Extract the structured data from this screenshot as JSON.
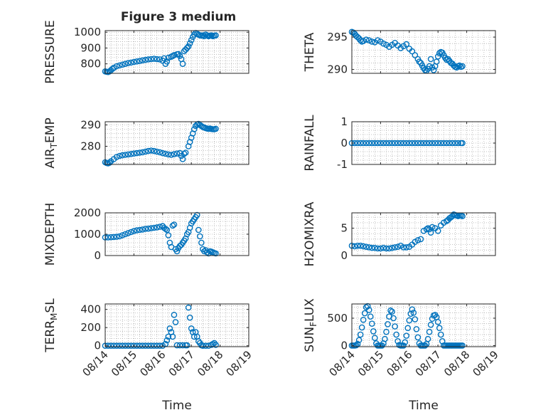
{
  "chart_data": [
    {
      "type": "scatter",
      "ylabel": "PRESSURE",
      "ylabel_sub": "",
      "ylabel_suffix": "",
      "title": "Figure 3 medium",
      "yticks": [
        800,
        900,
        1000
      ],
      "ylim": [
        740,
        1010
      ],
      "x": [
        0,
        0.05,
        0.1,
        0.15,
        0.2,
        0.25,
        0.3,
        0.4,
        0.5,
        0.6,
        0.7,
        0.8,
        0.9,
        1,
        1.1,
        1.2,
        1.3,
        1.4,
        1.5,
        1.6,
        1.7,
        1.8,
        1.9,
        2,
        2.05,
        2.1,
        2.15,
        2.2,
        2.3,
        2.35,
        2.4,
        2.5,
        2.55,
        2.6,
        2.65,
        2.7,
        2.75,
        2.8,
        2.85,
        2.9,
        2.95,
        3,
        3.05,
        3.1,
        3.15,
        3.2,
        3.25,
        3.3,
        3.35,
        3.4,
        3.45,
        3.5,
        3.55,
        3.6,
        3.65,
        3.7,
        3.75,
        3.8,
        3.85
      ],
      "y": [
        752,
        750,
        748,
        752,
        760,
        768,
        775,
        785,
        790,
        795,
        800,
        805,
        808,
        812,
        815,
        818,
        822,
        825,
        828,
        830,
        832,
        830,
        828,
        820,
        835,
        800,
        815,
        838,
        845,
        850,
        855,
        860,
        862,
        850,
        830,
        800,
        880,
        890,
        900,
        910,
        930,
        950,
        970,
        985,
        995,
        990,
        985,
        980,
        978,
        980,
        975,
        985,
        980,
        975,
        978,
        980,
        975,
        978,
        980
      ]
    },
    {
      "type": "scatter",
      "ylabel": "THETA",
      "ylabel_sub": "",
      "ylabel_suffix": "",
      "yticks": [
        290,
        295
      ],
      "ylim": [
        289.4,
        296
      ],
      "x": [
        0,
        0.05,
        0.1,
        0.15,
        0.2,
        0.25,
        0.3,
        0.35,
        0.4,
        0.5,
        0.6,
        0.7,
        0.8,
        0.9,
        1,
        1.1,
        1.2,
        1.3,
        1.4,
        1.5,
        1.6,
        1.7,
        1.8,
        1.9,
        2,
        2.1,
        2.2,
        2.3,
        2.35,
        2.4,
        2.45,
        2.5,
        2.55,
        2.6,
        2.65,
        2.7,
        2.75,
        2.8,
        2.85,
        2.9,
        2.95,
        3,
        3.05,
        3.1,
        3.15,
        3.2,
        3.25,
        3.3,
        3.35,
        3.4,
        3.45,
        3.5,
        3.55,
        3.6,
        3.65,
        3.7,
        3.75,
        3.8,
        3.85
      ],
      "y": [
        295.8,
        295.7,
        295.5,
        295.2,
        295,
        294.8,
        294.5,
        294.3,
        294.4,
        294.6,
        294.5,
        294.3,
        294.2,
        294.5,
        294.3,
        294,
        293.8,
        293.5,
        293.8,
        294.1,
        293.7,
        293.3,
        293.6,
        293.9,
        293.2,
        292.8,
        292.2,
        291.6,
        291.2,
        291,
        290.6,
        290.2,
        289.9,
        289.8,
        290.1,
        290.5,
        291.6,
        290.3,
        289.9,
        290.5,
        291.2,
        292,
        292.5,
        292.7,
        292.6,
        292.2,
        291.8,
        291.5,
        291.6,
        291.3,
        291,
        290.9,
        290.6,
        290.4,
        290.3,
        290.5,
        290.6,
        290.4,
        290.5
      ]
    },
    {
      "type": "scatter",
      "ylabel": "AIR",
      "ylabel_sub": "T",
      "ylabel_suffix": "EMP",
      "yticks": [
        280,
        290
      ],
      "ylim": [
        271.5,
        291.5
      ],
      "x": [
        0,
        0.05,
        0.1,
        0.15,
        0.2,
        0.3,
        0.4,
        0.5,
        0.6,
        0.7,
        0.8,
        0.9,
        1,
        1.1,
        1.2,
        1.3,
        1.4,
        1.5,
        1.6,
        1.7,
        1.8,
        1.9,
        2,
        2.1,
        2.2,
        2.3,
        2.4,
        2.5,
        2.6,
        2.65,
        2.7,
        2.75,
        2.8,
        2.9,
        2.95,
        3,
        3.05,
        3.1,
        3.15,
        3.2,
        3.25,
        3.3,
        3.35,
        3.4,
        3.45,
        3.5,
        3.55,
        3.6,
        3.65,
        3.7,
        3.75,
        3.8,
        3.85
      ],
      "y": [
        272.5,
        272.2,
        272,
        272.3,
        273,
        274,
        275,
        275.5,
        275.8,
        276,
        276.2,
        276.4,
        276.6,
        276.8,
        277,
        277.2,
        277.5,
        277.8,
        278,
        277.8,
        277.5,
        277.2,
        276.8,
        276.5,
        276.2,
        276,
        276.3,
        276.6,
        276.8,
        275.5,
        274,
        276.5,
        277,
        280,
        282,
        284,
        286,
        288,
        289.5,
        290.2,
        290.5,
        290,
        289.5,
        289,
        288.8,
        288.5,
        288.3,
        288.2,
        288.3,
        288.1,
        288,
        288,
        288.2
      ]
    },
    {
      "type": "scatter",
      "ylabel": "RAINFALL",
      "ylabel_sub": "",
      "ylabel_suffix": "",
      "yticks": [
        -1,
        0,
        1
      ],
      "ylim": [
        -1,
        1
      ],
      "x": [
        0,
        0.1,
        0.2,
        0.3,
        0.4,
        0.5,
        0.6,
        0.7,
        0.8,
        0.9,
        1,
        1.1,
        1.2,
        1.3,
        1.4,
        1.5,
        1.6,
        1.7,
        1.8,
        1.9,
        2,
        2.1,
        2.2,
        2.3,
        2.4,
        2.5,
        2.6,
        2.7,
        2.8,
        2.9,
        3,
        3.1,
        3.2,
        3.3,
        3.4,
        3.5,
        3.6,
        3.7,
        3.8,
        3.85
      ],
      "y": [
        0,
        0,
        0,
        0,
        0,
        0,
        0,
        0,
        0,
        0,
        0,
        0,
        0,
        0,
        0,
        0,
        0,
        0,
        0,
        0,
        0,
        0,
        0,
        0,
        0,
        0,
        0,
        0,
        0,
        0,
        0,
        0,
        0,
        0,
        0,
        0,
        0,
        0,
        0,
        0
      ]
    },
    {
      "type": "scatter",
      "ylabel": "MIXDEPTH",
      "ylabel_sub": "",
      "ylabel_suffix": "",
      "yticks": [
        0,
        1000,
        2000
      ],
      "ylim": [
        0,
        2000
      ],
      "x": [
        0,
        0.1,
        0.2,
        0.3,
        0.4,
        0.5,
        0.6,
        0.7,
        0.8,
        0.9,
        1,
        1.1,
        1.2,
        1.3,
        1.4,
        1.5,
        1.6,
        1.7,
        1.8,
        1.9,
        2,
        2.05,
        2.1,
        2.15,
        2.2,
        2.25,
        2.3,
        2.35,
        2.4,
        2.45,
        2.5,
        2.55,
        2.6,
        2.65,
        2.7,
        2.75,
        2.8,
        2.85,
        2.9,
        2.95,
        3,
        3.05,
        3.1,
        3.15,
        3.2,
        3.25,
        3.3,
        3.35,
        3.4,
        3.45,
        3.5,
        3.55,
        3.6,
        3.65,
        3.7,
        3.75,
        3.8,
        3.85
      ],
      "y": [
        850,
        850,
        860,
        870,
        880,
        900,
        950,
        1000,
        1050,
        1100,
        1150,
        1180,
        1200,
        1220,
        1250,
        1260,
        1280,
        1300,
        1320,
        1350,
        1380,
        1300,
        1250,
        1200,
        950,
        600,
        400,
        1400,
        1450,
        300,
        200,
        350,
        450,
        500,
        600,
        700,
        800,
        1000,
        1100,
        1300,
        1500,
        1600,
        1700,
        1800,
        1900,
        1200,
        900,
        600,
        300,
        200,
        250,
        150,
        100,
        200,
        180,
        150,
        120,
        100
      ]
    },
    {
      "type": "scatter",
      "ylabel": "H2OMIXRA",
      "ylabel_sub": "",
      "ylabel_suffix": "",
      "yticks": [
        0,
        5
      ],
      "ylim": [
        0,
        7.8
      ],
      "x": [
        0,
        0.1,
        0.2,
        0.3,
        0.4,
        0.5,
        0.6,
        0.7,
        0.8,
        0.9,
        1,
        1.1,
        1.2,
        1.3,
        1.4,
        1.5,
        1.6,
        1.7,
        1.8,
        1.9,
        2,
        2.1,
        2.2,
        2.3,
        2.4,
        2.5,
        2.6,
        2.65,
        2.7,
        2.75,
        2.8,
        2.9,
        3,
        3.1,
        3.2,
        3.3,
        3.35,
        3.4,
        3.45,
        3.5,
        3.55,
        3.6,
        3.65,
        3.7,
        3.75,
        3.8,
        3.85
      ],
      "y": [
        1.8,
        1.7,
        1.8,
        1.8,
        1.7,
        1.6,
        1.5,
        1.4,
        1.4,
        1.3,
        1.3,
        1.4,
        1.3,
        1.3,
        1.4,
        1.5,
        1.6,
        1.8,
        1.5,
        1.5,
        1.6,
        2,
        2.5,
        2.8,
        3,
        4.5,
        4.8,
        5,
        4.8,
        4.2,
        5.2,
        5,
        4.5,
        5.5,
        6,
        6.3,
        6.5,
        6.8,
        7,
        7.2,
        7.5,
        7.4,
        7.3,
        7.2,
        7.3,
        7.3,
        7.2
      ]
    },
    {
      "type": "scatter",
      "ylabel": "TERR",
      "ylabel_sub": "M",
      "ylabel_suffix": "SL",
      "yticks": [
        0,
        200,
        400
      ],
      "ylim": [
        -10,
        460
      ],
      "x": [
        0,
        0.1,
        0.2,
        0.3,
        0.4,
        0.5,
        0.6,
        0.7,
        0.8,
        0.9,
        1,
        1.1,
        1.2,
        1.3,
        1.4,
        1.5,
        1.6,
        1.7,
        1.8,
        1.9,
        2,
        2.1,
        2.15,
        2.2,
        2.25,
        2.3,
        2.35,
        2.4,
        2.45,
        2.5,
        2.6,
        2.7,
        2.8,
        2.85,
        2.9,
        2.95,
        3,
        3.05,
        3.1,
        3.15,
        3.2,
        3.25,
        3.3,
        3.35,
        3.4,
        3.5,
        3.6,
        3.7,
        3.75,
        3.8,
        3.85
      ],
      "y": [
        0,
        0,
        0,
        0,
        0,
        0,
        0,
        0,
        0,
        0,
        0,
        0,
        0,
        0,
        0,
        0,
        0,
        0,
        0,
        0,
        0,
        20,
        60,
        100,
        190,
        150,
        100,
        340,
        260,
        5,
        5,
        5,
        5,
        5,
        420,
        310,
        190,
        150,
        100,
        150,
        100,
        50,
        30,
        5,
        0,
        0,
        0,
        10,
        20,
        30,
        10
      ]
    },
    {
      "type": "scatter",
      "ylabel": "SUN",
      "ylabel_sub": "F",
      "ylabel_suffix": "LUX",
      "yticks": [
        0,
        500
      ],
      "ylim": [
        -20,
        760
      ],
      "x": [
        0,
        0.05,
        0.1,
        0.15,
        0.2,
        0.25,
        0.3,
        0.35,
        0.4,
        0.45,
        0.5,
        0.55,
        0.6,
        0.65,
        0.7,
        0.75,
        0.8,
        0.85,
        0.9,
        0.95,
        1,
        1.05,
        1.1,
        1.15,
        1.2,
        1.25,
        1.3,
        1.35,
        1.4,
        1.45,
        1.5,
        1.55,
        1.6,
        1.65,
        1.7,
        1.75,
        1.8,
        1.85,
        1.9,
        1.95,
        2,
        2.05,
        2.1,
        2.15,
        2.2,
        2.25,
        2.3,
        2.35,
        2.4,
        2.45,
        2.5,
        2.55,
        2.6,
        2.65,
        2.7,
        2.75,
        2.8,
        2.85,
        2.9,
        2.95,
        3,
        3.05,
        3.1,
        3.15,
        3.2,
        3.25,
        3.3,
        3.35,
        3.4,
        3.45,
        3.5,
        3.55,
        3.6,
        3.65,
        3.7,
        3.75,
        3.8,
        3.85
      ],
      "y": [
        0,
        0,
        0,
        5,
        30,
        100,
        200,
        330,
        470,
        590,
        700,
        720,
        650,
        530,
        400,
        260,
        140,
        40,
        0,
        0,
        0,
        0,
        40,
        120,
        250,
        390,
        530,
        640,
        620,
        500,
        350,
        200,
        80,
        10,
        0,
        0,
        0,
        60,
        180,
        320,
        460,
        580,
        660,
        600,
        480,
        300,
        150,
        40,
        0,
        0,
        0,
        0,
        30,
        120,
        250,
        380,
        490,
        550,
        560,
        520,
        430,
        320,
        200,
        80,
        0,
        0,
        0,
        0,
        0,
        0,
        0,
        0,
        0,
        0,
        0,
        0,
        0,
        0
      ]
    }
  ],
  "xaxis": {
    "xlim": [
      0,
      5
    ],
    "ticks": [
      0,
      1,
      2,
      3,
      4,
      5
    ],
    "tick_labels": [
      "08/14",
      "08/15",
      "08/16",
      "08/17",
      "08/18",
      "08/19"
    ],
    "xlabel": "Time"
  },
  "colors": {
    "marker": "#0072BD",
    "axis": "#262626",
    "grid": "#b0b0b0"
  }
}
